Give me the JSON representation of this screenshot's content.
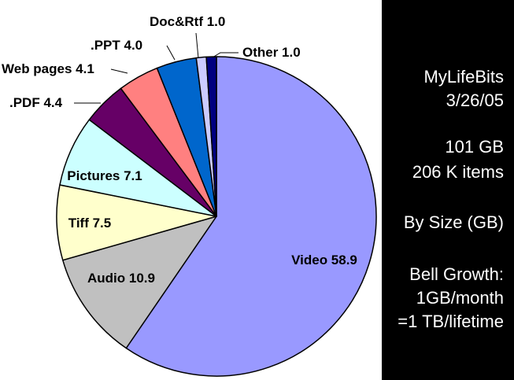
{
  "chart_data": {
    "type": "pie",
    "slices": [
      {
        "label": "Video",
        "value": 58.9,
        "text": "Video 58.9",
        "color": "#9999ff"
      },
      {
        "label": "Audio",
        "value": 10.9,
        "text": "Audio 10.9",
        "color": "#c0c0c0"
      },
      {
        "label": "Tiff",
        "value": 7.5,
        "text": "Tiff 7.5",
        "color": "#ffffcc"
      },
      {
        "label": "Pictures",
        "value": 7.1,
        "text": "Pictures 7.1",
        "color": "#ccffff"
      },
      {
        "label": ".PDF",
        "value": 4.4,
        "text": ".PDF 4.4",
        "color": "#660066"
      },
      {
        "label": "Web pages",
        "value": 4.1,
        "text": "Web pages 4.1",
        "color": "#ff8080"
      },
      {
        "label": ".PPT",
        "value": 4.0,
        "text": ".PPT 4.0",
        "color": "#0066cc"
      },
      {
        "label": "Doc&Rtf",
        "value": 1.0,
        "text": "Doc&Rtf 1.0",
        "color": "#ccccff"
      },
      {
        "label": "Other",
        "value": 1.0,
        "text": "Other 1.0",
        "color": "#000080"
      }
    ]
  },
  "side_panel": {
    "title": "MyLifeBits",
    "date": "3/26/05",
    "total_size": "101 GB",
    "item_count": "206 K items",
    "sort_mode": "By Size (GB)",
    "growth_heading": "Bell Growth:",
    "growth_rate": "1GB/month",
    "growth_lifetime": "=1 TB/lifetime"
  }
}
